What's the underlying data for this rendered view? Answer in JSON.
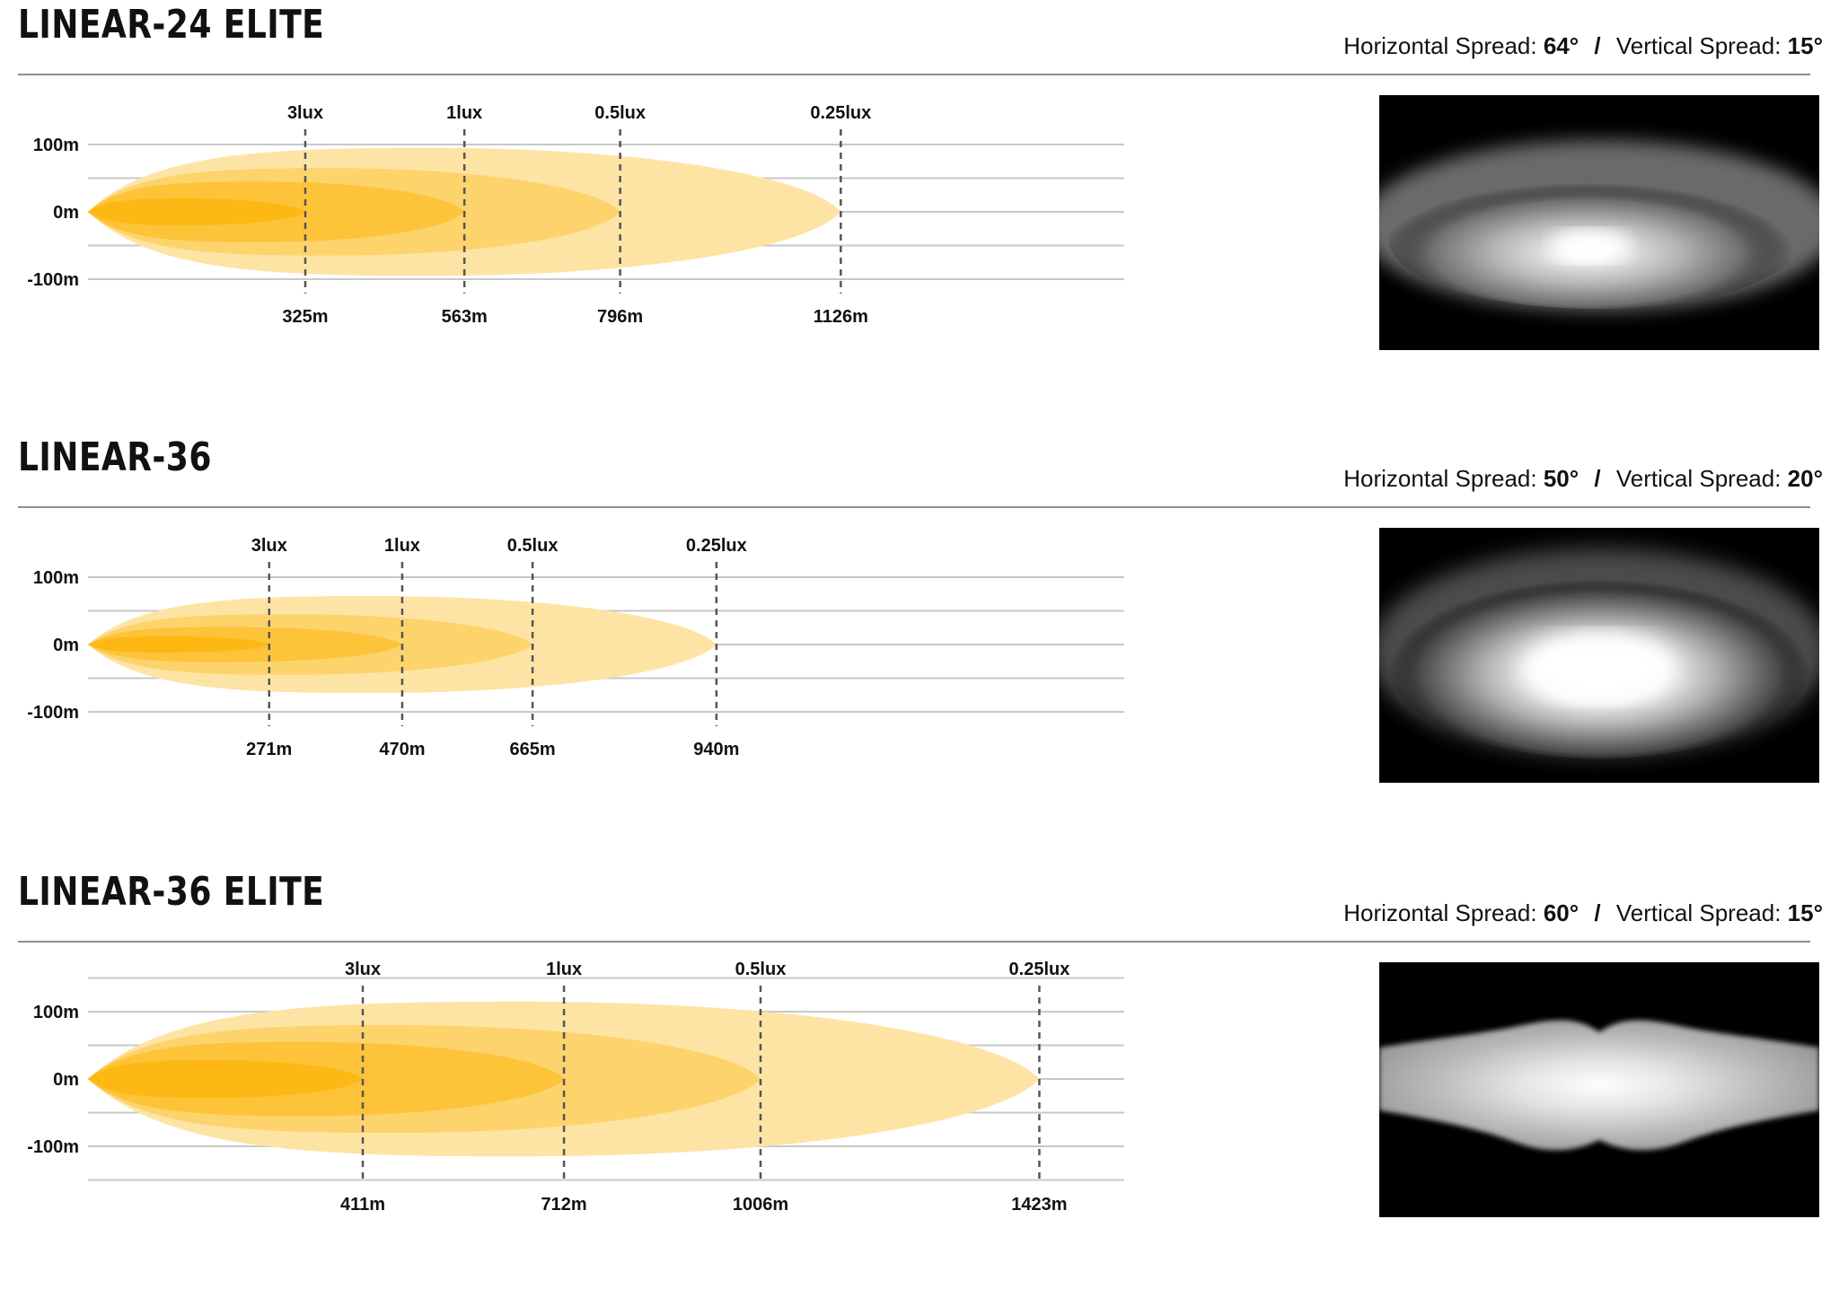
{
  "colors": {
    "zone_3lux": "#fdb813",
    "zone_1lux": "#fdc339",
    "zone_05lux": "#fdd36c",
    "zone_025lux": "#fee4a4",
    "grid": "#c8c8c8",
    "dash": "#555555"
  },
  "chart_data": [
    {
      "type": "area",
      "title": "LINEAR-24 ELITE",
      "spread": {
        "horizontal_label": "Horizontal Spread:",
        "horizontal_value": "64°",
        "separator": "/",
        "vertical_label": "Vertical Spread:",
        "vertical_value": "15°"
      },
      "y_ticks": [
        "100m",
        "0m",
        "-100m"
      ],
      "ylim": [
        -100,
        100
      ],
      "xlim": [
        0,
        1550
      ],
      "grid": true,
      "series": [
        {
          "name": "3lux",
          "distance_m": 325,
          "distance_label": "325m",
          "half_width_m": 20
        },
        {
          "name": "1lux",
          "distance_m": 563,
          "distance_label": "563m",
          "half_width_m": 45
        },
        {
          "name": "0.5lux",
          "distance_m": 796,
          "distance_label": "796m",
          "half_width_m": 65
        },
        {
          "name": "0.25lux",
          "distance_m": 1126,
          "distance_label": "1126m",
          "half_width_m": 95
        }
      ],
      "beam_photo": "oval"
    },
    {
      "type": "area",
      "title": "LINEAR-36",
      "spread": {
        "horizontal_label": "Horizontal Spread:",
        "horizontal_value": "50°",
        "separator": "/",
        "vertical_label": "Vertical Spread:",
        "vertical_value": "20°"
      },
      "y_ticks": [
        "100m",
        "0m",
        "-100m"
      ],
      "ylim": [
        -100,
        100
      ],
      "xlim": [
        0,
        1550
      ],
      "grid": true,
      "series": [
        {
          "name": "3lux",
          "distance_m": 271,
          "distance_label": "271m",
          "half_width_m": 12
        },
        {
          "name": "1lux",
          "distance_m": 470,
          "distance_label": "470m",
          "half_width_m": 26
        },
        {
          "name": "0.5lux",
          "distance_m": 665,
          "distance_label": "665m",
          "half_width_m": 45
        },
        {
          "name": "0.25lux",
          "distance_m": 940,
          "distance_label": "940m",
          "half_width_m": 72
        }
      ],
      "beam_photo": "oval-bright"
    },
    {
      "type": "area",
      "title": "LINEAR-36 ELITE",
      "spread": {
        "horizontal_label": "Horizontal Spread:",
        "horizontal_value": "60°",
        "separator": "/",
        "vertical_label": "Vertical Spread:",
        "vertical_value": "15°"
      },
      "y_ticks": [
        "100m",
        "0m",
        "-100m"
      ],
      "ylim": [
        -100,
        100
      ],
      "xlim": [
        0,
        1550
      ],
      "grid": true,
      "series": [
        {
          "name": "3lux",
          "distance_m": 411,
          "distance_label": "411m",
          "half_width_m": 28
        },
        {
          "name": "1lux",
          "distance_m": 712,
          "distance_label": "712m",
          "half_width_m": 55
        },
        {
          "name": "0.5lux",
          "distance_m": 1006,
          "distance_label": "1006m",
          "half_width_m": 80
        },
        {
          "name": "0.25lux",
          "distance_m": 1423,
          "distance_label": "1423m",
          "half_width_m": 115
        }
      ],
      "beam_photo": "butterfly"
    }
  ]
}
